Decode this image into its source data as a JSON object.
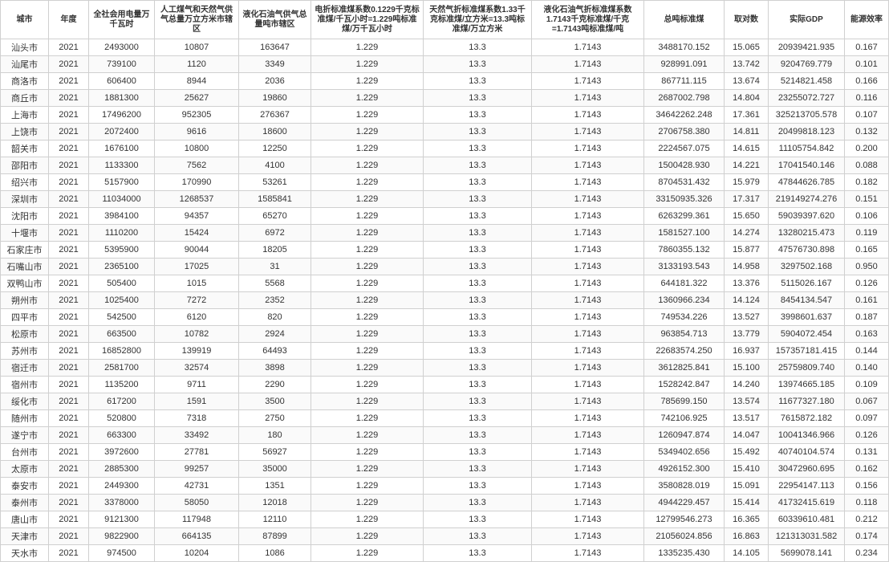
{
  "table": {
    "columns": [
      "城市",
      "年度",
      "全社会用电量万千瓦时",
      "人工煤气和天然气供气总量万立方米市辖区",
      "液化石油气供气总量吨市辖区",
      "电折标准煤系数0.1229千克标准煤/千瓦小时=1.229吨标准煤/万千瓦小时",
      "天然气折标准煤系数1.33千克标准煤/立方米=13.3吨标准煤/万立方米",
      "液化石油气折标准煤系数1.7143千克标准煤/千克=1.7143吨标准煤/吨",
      "总吨标准煤",
      "取对数",
      "实际GDP",
      "能源效率"
    ],
    "col_classes": [
      "col0",
      "col1",
      "col2",
      "col3",
      "col4",
      "col5",
      "col6",
      "col7",
      "col8",
      "col9",
      "col10",
      "col11"
    ],
    "rows": [
      [
        "汕头市",
        "2021",
        "2493000",
        "10807",
        "163647",
        "1.229",
        "13.3",
        "1.7143",
        "3488170.152",
        "15.065",
        "20939421.935",
        "0.167"
      ],
      [
        "汕尾市",
        "2021",
        "739100",
        "1120",
        "3349",
        "1.229",
        "13.3",
        "1.7143",
        "928991.091",
        "13.742",
        "9204769.779",
        "0.101"
      ],
      [
        "商洛市",
        "2021",
        "606400",
        "8944",
        "2036",
        "1.229",
        "13.3",
        "1.7143",
        "867711.115",
        "13.674",
        "5214821.458",
        "0.166"
      ],
      [
        "商丘市",
        "2021",
        "1881300",
        "25627",
        "19860",
        "1.229",
        "13.3",
        "1.7143",
        "2687002.798",
        "14.804",
        "23255072.727",
        "0.116"
      ],
      [
        "上海市",
        "2021",
        "17496200",
        "952305",
        "276367",
        "1.229",
        "13.3",
        "1.7143",
        "34642262.248",
        "17.361",
        "325213705.578",
        "0.107"
      ],
      [
        "上饶市",
        "2021",
        "2072400",
        "9616",
        "18600",
        "1.229",
        "13.3",
        "1.7143",
        "2706758.380",
        "14.811",
        "20499818.123",
        "0.132"
      ],
      [
        "韶关市",
        "2021",
        "1676100",
        "10800",
        "12250",
        "1.229",
        "13.3",
        "1.7143",
        "2224567.075",
        "14.615",
        "11105754.842",
        "0.200"
      ],
      [
        "邵阳市",
        "2021",
        "1133300",
        "7562",
        "4100",
        "1.229",
        "13.3",
        "1.7143",
        "1500428.930",
        "14.221",
        "17041540.146",
        "0.088"
      ],
      [
        "绍兴市",
        "2021",
        "5157900",
        "170990",
        "53261",
        "1.229",
        "13.3",
        "1.7143",
        "8704531.432",
        "15.979",
        "47844626.785",
        "0.182"
      ],
      [
        "深圳市",
        "2021",
        "11034000",
        "1268537",
        "1585841",
        "1.229",
        "13.3",
        "1.7143",
        "33150935.326",
        "17.317",
        "219149274.276",
        "0.151"
      ],
      [
        "沈阳市",
        "2021",
        "3984100",
        "94357",
        "65270",
        "1.229",
        "13.3",
        "1.7143",
        "6263299.361",
        "15.650",
        "59039397.620",
        "0.106"
      ],
      [
        "十堰市",
        "2021",
        "1110200",
        "15424",
        "6972",
        "1.229",
        "13.3",
        "1.7143",
        "1581527.100",
        "14.274",
        "13280215.473",
        "0.119"
      ],
      [
        "石家庄市",
        "2021",
        "5395900",
        "90044",
        "18205",
        "1.229",
        "13.3",
        "1.7143",
        "7860355.132",
        "15.877",
        "47576730.898",
        "0.165"
      ],
      [
        "石嘴山市",
        "2021",
        "2365100",
        "17025",
        "31",
        "1.229",
        "13.3",
        "1.7143",
        "3133193.543",
        "14.958",
        "3297502.168",
        "0.950"
      ],
      [
        "双鸭山市",
        "2021",
        "505400",
        "1015",
        "5568",
        "1.229",
        "13.3",
        "1.7143",
        "644181.322",
        "13.376",
        "5115026.167",
        "0.126"
      ],
      [
        "朔州市",
        "2021",
        "1025400",
        "7272",
        "2352",
        "1.229",
        "13.3",
        "1.7143",
        "1360966.234",
        "14.124",
        "8454134.547",
        "0.161"
      ],
      [
        "四平市",
        "2021",
        "542500",
        "6120",
        "820",
        "1.229",
        "13.3",
        "1.7143",
        "749534.226",
        "13.527",
        "3998601.637",
        "0.187"
      ],
      [
        "松原市",
        "2021",
        "663500",
        "10782",
        "2924",
        "1.229",
        "13.3",
        "1.7143",
        "963854.713",
        "13.779",
        "5904072.454",
        "0.163"
      ],
      [
        "苏州市",
        "2021",
        "16852800",
        "139919",
        "64493",
        "1.229",
        "13.3",
        "1.7143",
        "22683574.250",
        "16.937",
        "157357181.415",
        "0.144"
      ],
      [
        "宿迁市",
        "2021",
        "2581700",
        "32574",
        "3898",
        "1.229",
        "13.3",
        "1.7143",
        "3612825.841",
        "15.100",
        "25759809.740",
        "0.140"
      ],
      [
        "宿州市",
        "2021",
        "1135200",
        "9711",
        "2290",
        "1.229",
        "13.3",
        "1.7143",
        "1528242.847",
        "14.240",
        "13974665.185",
        "0.109"
      ],
      [
        "绥化市",
        "2021",
        "617200",
        "1591",
        "3500",
        "1.229",
        "13.3",
        "1.7143",
        "785699.150",
        "13.574",
        "11677327.180",
        "0.067"
      ],
      [
        "随州市",
        "2021",
        "520800",
        "7318",
        "2750",
        "1.229",
        "13.3",
        "1.7143",
        "742106.925",
        "13.517",
        "7615872.182",
        "0.097"
      ],
      [
        "遂宁市",
        "2021",
        "663300",
        "33492",
        "180",
        "1.229",
        "13.3",
        "1.7143",
        "1260947.874",
        "14.047",
        "10041346.966",
        "0.126"
      ],
      [
        "台州市",
        "2021",
        "3972600",
        "27781",
        "56927",
        "1.229",
        "13.3",
        "1.7143",
        "5349402.656",
        "15.492",
        "40740104.574",
        "0.131"
      ],
      [
        "太原市",
        "2021",
        "2885300",
        "99257",
        "35000",
        "1.229",
        "13.3",
        "1.7143",
        "4926152.300",
        "15.410",
        "30472960.695",
        "0.162"
      ],
      [
        "泰安市",
        "2021",
        "2449300",
        "42731",
        "1351",
        "1.229",
        "13.3",
        "1.7143",
        "3580828.019",
        "15.091",
        "22954147.113",
        "0.156"
      ],
      [
        "泰州市",
        "2021",
        "3378000",
        "58050",
        "12018",
        "1.229",
        "13.3",
        "1.7143",
        "4944229.457",
        "15.414",
        "41732415.619",
        "0.118"
      ],
      [
        "唐山市",
        "2021",
        "9121300",
        "117948",
        "12110",
        "1.229",
        "13.3",
        "1.7143",
        "12799546.273",
        "16.365",
        "60339610.481",
        "0.212"
      ],
      [
        "天津市",
        "2021",
        "9822900",
        "664135",
        "87899",
        "1.229",
        "13.3",
        "1.7143",
        "21056024.856",
        "16.863",
        "121313031.582",
        "0.174"
      ],
      [
        "天水市",
        "2021",
        "974500",
        "10204",
        "1086",
        "1.229",
        "13.3",
        "1.7143",
        "1335235.430",
        "14.105",
        "5699078.141",
        "0.234"
      ]
    ]
  }
}
